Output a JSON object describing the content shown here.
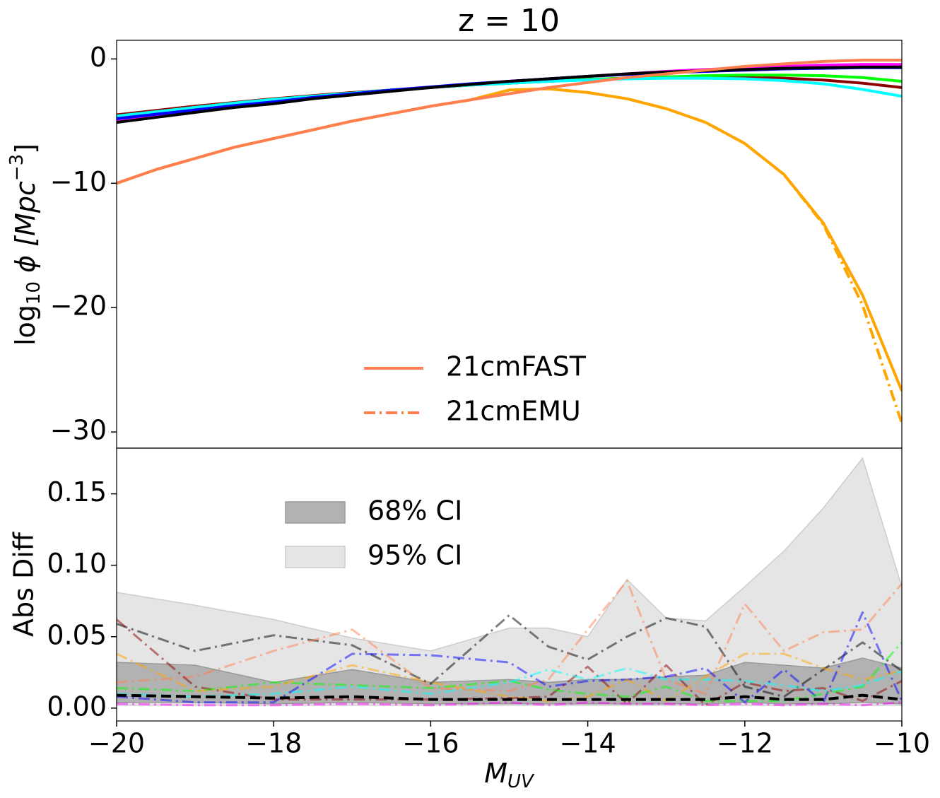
{
  "chart_data": [
    {
      "type": "line",
      "title": "z = 10",
      "y_label": {
        "text": "log",
        "sub": "10",
        "text2": " ϕ [Mpc",
        "sup": "−3",
        "text3": "]"
      },
      "xlim": [
        -20,
        -10
      ],
      "ylim": [
        -31.3,
        1.5
      ],
      "yticks": [
        {
          "value": -30,
          "label": "−30"
        },
        {
          "value": -20,
          "label": "−20"
        },
        {
          "value": -10,
          "label": "−10"
        },
        0
      ],
      "x": [
        -20,
        -19.5,
        -19,
        -18.5,
        -18,
        -17.5,
        -17,
        -16.5,
        -16,
        -15.5,
        -15,
        -14.5,
        -14,
        -13.5,
        -13,
        -12.5,
        -12,
        -11.5,
        -11,
        -10.5,
        -10
      ],
      "line_width": 4,
      "series": [
        {
          "color": "#8b0000",
          "dash": "solid",
          "values": [
            -4.5,
            -4.15,
            -3.8,
            -3.5,
            -3.2,
            -2.95,
            -2.7,
            -2.5,
            -2.3,
            -2.1,
            -1.95,
            -1.8,
            -1.65,
            -1.55,
            -1.45,
            -1.4,
            -1.45,
            -1.55,
            -1.7,
            -1.95,
            -2.3
          ]
        },
        {
          "color": "#00ff00",
          "dash": "solid",
          "values": [
            -4.6,
            -4.25,
            -3.9,
            -3.55,
            -3.25,
            -3.0,
            -2.75,
            -2.5,
            -2.3,
            -2.1,
            -1.95,
            -1.8,
            -1.65,
            -1.55,
            -1.45,
            -1.35,
            -1.3,
            -1.3,
            -1.35,
            -1.5,
            -1.8
          ]
        },
        {
          "color": "#00ffff",
          "dash": "solid",
          "values": [
            -4.6,
            -4.25,
            -3.9,
            -3.55,
            -3.25,
            -3.0,
            -2.75,
            -2.5,
            -2.3,
            -2.1,
            -1.95,
            -1.8,
            -1.7,
            -1.6,
            -1.55,
            -1.55,
            -1.6,
            -1.75,
            -2.0,
            -2.45,
            -3.0
          ]
        },
        {
          "color": "#ff00ff",
          "dash": "solid",
          "values": [
            -4.9,
            -4.5,
            -4.15,
            -3.8,
            -3.45,
            -3.15,
            -2.85,
            -2.55,
            -2.3,
            -2.05,
            -1.8,
            -1.6,
            -1.4,
            -1.2,
            -1.0,
            -0.85,
            -0.7,
            -0.6,
            -0.5,
            -0.45,
            -0.45
          ]
        },
        {
          "color": "#0000ff",
          "dash": "solid",
          "values": [
            -4.8,
            -4.45,
            -4.1,
            -3.75,
            -3.45,
            -3.1,
            -2.8,
            -2.5,
            -2.25,
            -2.0,
            -1.8,
            -1.6,
            -1.4,
            -1.25,
            -1.1,
            -1.0,
            -0.9,
            -0.8,
            -0.75,
            -0.7,
            -0.7
          ]
        },
        {
          "color": "#000000",
          "dash": "solid",
          "values": [
            -5.1,
            -4.7,
            -4.3,
            -3.9,
            -3.6,
            -3.2,
            -2.9,
            -2.6,
            -2.3,
            -2.05,
            -1.8,
            -1.6,
            -1.4,
            -1.2,
            -1.05,
            -0.95,
            -0.85,
            -0.75,
            -0.7,
            -0.65,
            -0.65
          ]
        },
        {
          "color": "#ffa500",
          "dash": "dashdot",
          "values": [
            -10,
            -8.9,
            -8.0,
            -7.1,
            -6.4,
            -5.7,
            -5.0,
            -4.4,
            -3.8,
            -3.3,
            -2.5,
            -2.4,
            -2.7,
            -3.2,
            -4.0,
            -5.1,
            -6.8,
            -9.3,
            -13.3,
            -19.8,
            -29.3
          ]
        },
        {
          "color": "#ffa500",
          "dash": "solid",
          "values": [
            -10,
            -8.9,
            -8.0,
            -7.1,
            -6.4,
            -5.7,
            -5.0,
            -4.4,
            -3.8,
            -3.3,
            -2.5,
            -2.4,
            -2.7,
            -3.2,
            -4.0,
            -5.1,
            -6.8,
            -9.3,
            -13.2,
            -19.0,
            -26.7
          ]
        },
        {
          "color": "#ff7f50",
          "dash": "solid",
          "values": [
            -10,
            -8.9,
            -8.0,
            -7.1,
            -6.4,
            -5.7,
            -5.0,
            -4.4,
            -3.8,
            -3.3,
            -2.8,
            -2.3,
            -1.9,
            -1.5,
            -1.2,
            -0.9,
            -0.6,
            -0.4,
            -0.2,
            -0.1,
            -0.1
          ]
        }
      ],
      "legend_loc": "lower center",
      "legend": [
        {
          "label": "21cmFAST",
          "color": "#ff7f50",
          "dash": "solid"
        },
        {
          "label": "21cmEMU",
          "color": "#ff7f50",
          "dash": "dashdot"
        }
      ]
    },
    {
      "type": "line",
      "y_label": "Abs Diff",
      "x_label": {
        "text": "M",
        "sub": "UV"
      },
      "xlim": [
        -20,
        -10
      ],
      "ylim": [
        -0.009,
        0.182
      ],
      "xticks": [
        {
          "value": -20,
          "label": "−20"
        },
        {
          "value": -18,
          "label": "−18"
        },
        {
          "value": -16,
          "label": "−16"
        },
        {
          "value": -14,
          "label": "−14"
        },
        {
          "value": -12,
          "label": "−12"
        },
        {
          "value": -10,
          "label": "−10"
        }
      ],
      "yticks": [
        {
          "value": 0,
          "label": "0.00"
        },
        {
          "value": 0.05,
          "label": "0.05"
        },
        {
          "value": 0.1,
          "label": "0.10"
        },
        {
          "value": 0.15,
          "label": "0.15"
        }
      ],
      "x": [
        -20,
        -19,
        -18,
        -17,
        -16,
        -15,
        -14.5,
        -14,
        -13.5,
        -13,
        -12.5,
        -12,
        -11.5,
        -11,
        -10.5,
        -10
      ],
      "bands": [
        {
          "name": "95% CI",
          "color": "#e5e5e5",
          "edge": "#cccccc",
          "lower": [
            0.002,
            0.002,
            0.002,
            0.002,
            0.002,
            0.002,
            0.002,
            0.002,
            0.002,
            0.002,
            0.002,
            0.002,
            0.002,
            0.002,
            0.002,
            0.002
          ],
          "upper": [
            0.081,
            0.072,
            0.062,
            0.049,
            0.04,
            0.056,
            0.056,
            0.05,
            0.09,
            0.063,
            0.061,
            0.085,
            0.11,
            0.14,
            0.175,
            0.085
          ]
        },
        {
          "name": "68% CI",
          "color": "#b2b2b2",
          "edge": "#999999",
          "lower": [
            0.004,
            0.004,
            0.003,
            0.004,
            0.003,
            0.003,
            0.003,
            0.003,
            0.003,
            0.003,
            0.003,
            0.004,
            0.003,
            0.003,
            0.004,
            0.003
          ],
          "upper": [
            0.032,
            0.03,
            0.018,
            0.027,
            0.018,
            0.02,
            0.018,
            0.02,
            0.02,
            0.022,
            0.023,
            0.032,
            0.03,
            0.028,
            0.035,
            0.028
          ]
        }
      ],
      "line_alpha": 0.5,
      "line_width": 3,
      "series": [
        {
          "color": "#000000",
          "dash": "dashdot",
          "values": [
            0.059,
            0.04,
            0.051,
            0.044,
            0.017,
            0.065,
            0.043,
            0.034,
            0.05,
            0.063,
            0.057,
            0.015,
            0.008,
            0.027,
            0.046,
            0.026
          ]
        },
        {
          "color": "#ff7f50",
          "dash": "dashdot",
          "values": [
            0.018,
            0.022,
            0.04,
            0.055,
            0.014,
            0.012,
            0.02,
            0.055,
            0.089,
            0.02,
            0.01,
            0.073,
            0.04,
            0.053,
            0.055,
            0.087
          ]
        },
        {
          "color": "#0000ff",
          "dash": "dashdot",
          "values": [
            0.008,
            0.004,
            0.004,
            0.038,
            0.037,
            0.032,
            0.015,
            0.019,
            0.02,
            0.022,
            0.028,
            0.004,
            0.027,
            0.004,
            0.067,
            0.005
          ]
        },
        {
          "color": "#8b0000",
          "dash": "dashdot",
          "values": [
            0.062,
            0.015,
            0.006,
            0.006,
            0.006,
            0.007,
            0.008,
            0.029,
            0.003,
            0.03,
            0.002,
            0.018,
            0.012,
            0.014,
            0.005,
            0.019
          ]
        },
        {
          "color": "#00ff00",
          "dash": "dashdot",
          "values": [
            0.014,
            0.012,
            0.018,
            0.016,
            0.014,
            0.019,
            0.013,
            0.01,
            0.008,
            0.015,
            0.005,
            0.005,
            0.005,
            0.01,
            0.015,
            0.046
          ]
        },
        {
          "color": "#00ffff",
          "dash": "dashdot",
          "values": [
            0.01,
            0.008,
            0.01,
            0.015,
            0.01,
            0.018,
            0.027,
            0.02,
            0.028,
            0.02,
            0.02,
            0.019,
            0.016,
            0.012,
            0.016,
            0.026
          ]
        },
        {
          "color": "#ffa500",
          "dash": "dashdot",
          "values": [
            0.038,
            0.012,
            0.015,
            0.03,
            0.018,
            0.008,
            0.005,
            0.008,
            0.02,
            0.005,
            0.022,
            0.038,
            0.038,
            0.028,
            0.02,
            0.026
          ]
        },
        {
          "color": "#ff00ff",
          "dash": "dashdot",
          "values": [
            0.003,
            0.002,
            0.002,
            0.003,
            0.002,
            0.004,
            0.002,
            0.004,
            0.003,
            0.003,
            0.002,
            0.003,
            0.002,
            0.003,
            0.002,
            0.004
          ]
        }
      ],
      "median": {
        "color": "#000000",
        "dash": "dashed",
        "values": [
          0.009,
          0.008,
          0.007,
          0.008,
          0.006,
          0.006,
          0.006,
          0.006,
          0.006,
          0.006,
          0.006,
          0.008,
          0.006,
          0.006,
          0.009,
          0.006
        ]
      },
      "legend_loc": "upper left",
      "legend_order": [
        1,
        0
      ]
    }
  ]
}
